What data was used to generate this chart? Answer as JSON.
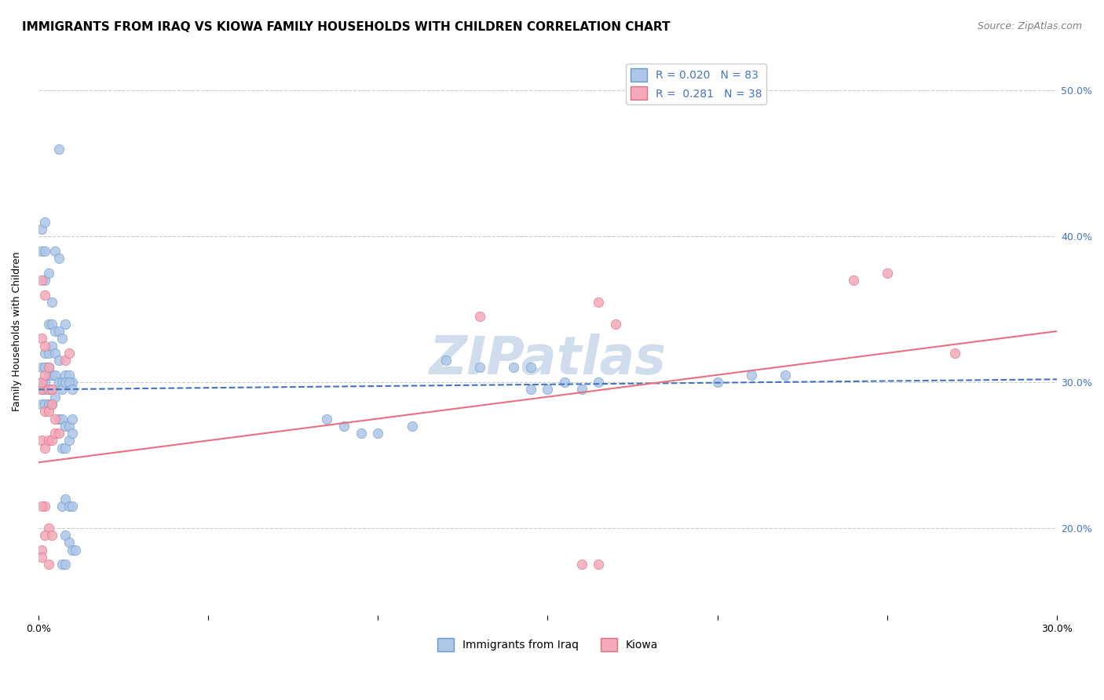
{
  "title": "IMMIGRANTS FROM IRAQ VS KIOWA FAMILY HOUSEHOLDS WITH CHILDREN CORRELATION CHART",
  "source": "Source: ZipAtlas.com",
  "ylabel": "Family Households with Children",
  "iraq_scatter": [
    [
      0.001,
      0.295
    ],
    [
      0.002,
      0.295
    ],
    [
      0.003,
      0.295
    ],
    [
      0.002,
      0.3
    ],
    [
      0.003,
      0.305
    ],
    [
      0.004,
      0.305
    ],
    [
      0.005,
      0.305
    ],
    [
      0.001,
      0.3
    ],
    [
      0.001,
      0.31
    ],
    [
      0.002,
      0.31
    ],
    [
      0.003,
      0.31
    ],
    [
      0.004,
      0.295
    ],
    [
      0.001,
      0.285
    ],
    [
      0.002,
      0.285
    ],
    [
      0.003,
      0.285
    ],
    [
      0.004,
      0.285
    ],
    [
      0.005,
      0.29
    ],
    [
      0.002,
      0.32
    ],
    [
      0.003,
      0.32
    ],
    [
      0.004,
      0.325
    ],
    [
      0.005,
      0.32
    ],
    [
      0.006,
      0.315
    ],
    [
      0.002,
      0.37
    ],
    [
      0.003,
      0.375
    ],
    [
      0.004,
      0.355
    ],
    [
      0.003,
      0.34
    ],
    [
      0.004,
      0.34
    ],
    [
      0.005,
      0.335
    ],
    [
      0.006,
      0.335
    ],
    [
      0.007,
      0.33
    ],
    [
      0.008,
      0.34
    ],
    [
      0.006,
      0.3
    ],
    [
      0.007,
      0.3
    ],
    [
      0.008,
      0.305
    ],
    [
      0.009,
      0.305
    ],
    [
      0.01,
      0.3
    ],
    [
      0.001,
      0.39
    ],
    [
      0.002,
      0.39
    ],
    [
      0.001,
      0.405
    ],
    [
      0.002,
      0.41
    ],
    [
      0.005,
      0.39
    ],
    [
      0.006,
      0.385
    ],
    [
      0.007,
      0.295
    ],
    [
      0.008,
      0.3
    ],
    [
      0.009,
      0.3
    ],
    [
      0.01,
      0.295
    ],
    [
      0.006,
      0.275
    ],
    [
      0.007,
      0.275
    ],
    [
      0.008,
      0.27
    ],
    [
      0.009,
      0.27
    ],
    [
      0.01,
      0.275
    ],
    [
      0.007,
      0.255
    ],
    [
      0.008,
      0.255
    ],
    [
      0.009,
      0.26
    ],
    [
      0.01,
      0.265
    ],
    [
      0.007,
      0.215
    ],
    [
      0.008,
      0.22
    ],
    [
      0.009,
      0.215
    ],
    [
      0.01,
      0.215
    ],
    [
      0.008,
      0.195
    ],
    [
      0.009,
      0.19
    ],
    [
      0.01,
      0.185
    ],
    [
      0.011,
      0.185
    ],
    [
      0.007,
      0.175
    ],
    [
      0.008,
      0.175
    ],
    [
      0.006,
      0.46
    ],
    [
      0.12,
      0.315
    ],
    [
      0.14,
      0.31
    ],
    [
      0.13,
      0.31
    ],
    [
      0.145,
      0.31
    ],
    [
      0.15,
      0.295
    ],
    [
      0.16,
      0.295
    ],
    [
      0.09,
      0.27
    ],
    [
      0.1,
      0.265
    ],
    [
      0.11,
      0.27
    ],
    [
      0.095,
      0.265
    ],
    [
      0.085,
      0.275
    ],
    [
      0.145,
      0.295
    ],
    [
      0.155,
      0.3
    ],
    [
      0.165,
      0.3
    ],
    [
      0.2,
      0.3
    ],
    [
      0.21,
      0.305
    ],
    [
      0.22,
      0.305
    ]
  ],
  "kiowa_scatter": [
    [
      0.001,
      0.295
    ],
    [
      0.001,
      0.3
    ],
    [
      0.002,
      0.305
    ],
    [
      0.003,
      0.31
    ],
    [
      0.001,
      0.33
    ],
    [
      0.002,
      0.325
    ],
    [
      0.002,
      0.36
    ],
    [
      0.001,
      0.37
    ],
    [
      0.001,
      0.26
    ],
    [
      0.002,
      0.255
    ],
    [
      0.002,
      0.215
    ],
    [
      0.001,
      0.215
    ],
    [
      0.003,
      0.2
    ],
    [
      0.002,
      0.195
    ],
    [
      0.004,
      0.195
    ],
    [
      0.001,
      0.185
    ],
    [
      0.001,
      0.18
    ],
    [
      0.003,
      0.175
    ],
    [
      0.002,
      0.28
    ],
    [
      0.003,
      0.28
    ],
    [
      0.004,
      0.285
    ],
    [
      0.005,
      0.275
    ],
    [
      0.003,
      0.26
    ],
    [
      0.004,
      0.26
    ],
    [
      0.005,
      0.265
    ],
    [
      0.006,
      0.265
    ],
    [
      0.003,
      0.295
    ],
    [
      0.004,
      0.295
    ],
    [
      0.008,
      0.315
    ],
    [
      0.009,
      0.32
    ],
    [
      0.13,
      0.345
    ],
    [
      0.165,
      0.355
    ],
    [
      0.17,
      0.34
    ],
    [
      0.25,
      0.375
    ],
    [
      0.24,
      0.37
    ],
    [
      0.27,
      0.32
    ],
    [
      0.16,
      0.175
    ],
    [
      0.165,
      0.175
    ]
  ],
  "iraq_line_x": [
    0.0,
    0.3
  ],
  "iraq_line_y": [
    0.295,
    0.302
  ],
  "kiowa_line_x": [
    0.0,
    0.3
  ],
  "kiowa_line_y": [
    0.245,
    0.335
  ],
  "xlim": [
    0.0,
    0.3
  ],
  "ylim": [
    0.14,
    0.53
  ],
  "scatter_size": 80,
  "iraq_color": "#aec6e8",
  "kiowa_color": "#f4a8b8",
  "iraq_edge": "#6699cc",
  "kiowa_edge": "#d97080",
  "iraq_line_color": "#4472c4",
  "kiowa_line_color": "#e87080",
  "title_fontsize": 11,
  "source_fontsize": 9,
  "label_fontsize": 9,
  "tick_fontsize": 9,
  "watermark": "ZIPatlas",
  "watermark_fontsize": 48,
  "watermark_color": "#d0dded",
  "grid_color": "#cccccc",
  "background_color": "#ffffff",
  "right_tick_color": "#4472c4",
  "legend_r1": "R = 0.020   N = 83",
  "legend_r2": "R =  0.281   N = 38",
  "legend_label1": "Immigrants from Iraq",
  "legend_label2": "Kiowa",
  "y_tick_positions": [
    0.2,
    0.3,
    0.4,
    0.5
  ],
  "y_tick_labels": [
    "20.0%",
    "30.0%",
    "40.0%",
    "50.0%"
  ]
}
